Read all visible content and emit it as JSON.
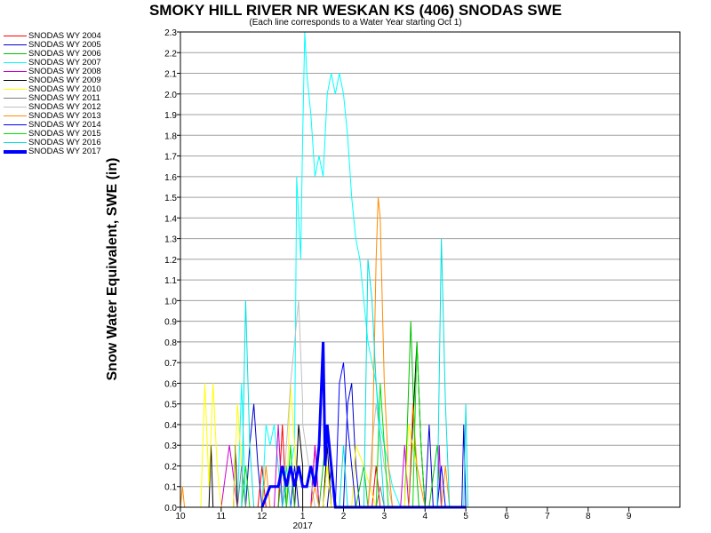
{
  "chart_data": {
    "type": "line",
    "title": "SMOKY HILL RIVER NR WESKAN KS (406) SNODAS SWE",
    "subtitle": "(Each line corresponds to a Water Year starting Oct 1)",
    "ylabel": "Snow Water Equivalent, SWE (in)",
    "xlabel": "",
    "year_label": "2017",
    "ylim": [
      0.0,
      2.3
    ],
    "yticks": [
      "0.0",
      "0.1",
      "0.2",
      "0.3",
      "0.4",
      "0.5",
      "0.6",
      "0.7",
      "0.8",
      "0.9",
      "1.0",
      "1.1",
      "1.2",
      "1.3",
      "1.4",
      "1.5",
      "1.6",
      "1.7",
      "1.8",
      "1.9",
      "2.0",
      "2.1",
      "2.2",
      "2.3"
    ],
    "xticks": [
      "10",
      "11",
      "12",
      "1",
      "2",
      "3",
      "4",
      "5",
      "6",
      "7",
      "8",
      "9"
    ],
    "grid": true,
    "legend_position": "left",
    "series": [
      {
        "name": "SNODAS WY 2004",
        "color": "#ff0000",
        "bold": false,
        "points": [
          [
            11.9,
            0
          ],
          [
            12.0,
            0.2
          ],
          [
            12.1,
            0
          ],
          [
            12.4,
            0
          ],
          [
            12.5,
            0.4
          ],
          [
            12.6,
            0
          ],
          [
            1.2,
            0
          ],
          [
            1.3,
            0.3
          ],
          [
            1.4,
            0
          ],
          [
            2.7,
            0
          ],
          [
            2.8,
            0.2
          ],
          [
            2.9,
            0
          ],
          [
            5.0,
            0
          ]
        ]
      },
      {
        "name": "SNODAS WY 2005",
        "color": "#0000cc",
        "bold": false,
        "points": [
          [
            11.6,
            0
          ],
          [
            11.7,
            0.3
          ],
          [
            11.8,
            0.5
          ],
          [
            11.9,
            0.2
          ],
          [
            12.0,
            0
          ],
          [
            1.6,
            0
          ],
          [
            1.7,
            0.2
          ],
          [
            1.8,
            0
          ],
          [
            2.0,
            0
          ],
          [
            2.1,
            0.5
          ],
          [
            2.2,
            0.6
          ],
          [
            2.3,
            0.2
          ],
          [
            2.4,
            0
          ],
          [
            4.0,
            0
          ],
          [
            4.1,
            0.4
          ],
          [
            4.2,
            0
          ],
          [
            4.9,
            0
          ],
          [
            4.95,
            0.4
          ],
          [
            5.0,
            0
          ]
        ]
      },
      {
        "name": "SNODAS WY 2006",
        "color": "#00c000",
        "bold": false,
        "points": [
          [
            12.4,
            0
          ],
          [
            12.5,
            0.2
          ],
          [
            12.6,
            0
          ],
          [
            1.4,
            0
          ],
          [
            1.6,
            0.4
          ],
          [
            1.8,
            0
          ],
          [
            2.3,
            0
          ],
          [
            2.5,
            0.2
          ],
          [
            2.6,
            0
          ],
          [
            3.5,
            0
          ],
          [
            3.65,
            0.9
          ],
          [
            3.75,
            0.3
          ],
          [
            3.85,
            0
          ],
          [
            4.1,
            0
          ],
          [
            4.3,
            0.3
          ],
          [
            4.4,
            0
          ],
          [
            5.0,
            0
          ]
        ]
      },
      {
        "name": "SNODAS WY 2007",
        "color": "#00ffff",
        "bold": false,
        "points": [
          [
            10.0,
            0
          ],
          [
            10.2,
            0
          ],
          [
            11.4,
            0
          ],
          [
            11.5,
            0.6
          ],
          [
            11.55,
            0.3
          ],
          [
            11.6,
            0
          ],
          [
            12.0,
            0
          ],
          [
            12.1,
            0.4
          ],
          [
            12.2,
            0.3
          ],
          [
            12.3,
            0.4
          ],
          [
            12.5,
            0
          ],
          [
            12.8,
            0.3
          ],
          [
            12.85,
            1.6
          ],
          [
            12.95,
            1.2
          ],
          [
            1.0,
            1.8
          ],
          [
            1.05,
            2.3
          ],
          [
            1.1,
            2.1
          ],
          [
            1.2,
            1.9
          ],
          [
            1.3,
            1.6
          ],
          [
            1.4,
            1.7
          ],
          [
            1.5,
            1.6
          ],
          [
            1.6,
            2.0
          ],
          [
            1.7,
            2.1
          ],
          [
            1.8,
            2.0
          ],
          [
            1.9,
            2.1
          ],
          [
            2.0,
            2.0
          ],
          [
            2.1,
            1.8
          ],
          [
            2.2,
            1.5
          ],
          [
            2.3,
            1.3
          ],
          [
            2.4,
            1.2
          ],
          [
            2.5,
            1.0
          ],
          [
            2.6,
            0.8
          ],
          [
            2.7,
            0.7
          ],
          [
            2.8,
            0.6
          ],
          [
            2.9,
            0.4
          ],
          [
            3.0,
            0.3
          ],
          [
            3.2,
            0.1
          ],
          [
            3.4,
            0
          ],
          [
            5.0,
            0
          ]
        ]
      },
      {
        "name": "SNODAS WY 2008",
        "color": "#cc00cc",
        "bold": false,
        "points": [
          [
            10.0,
            0
          ],
          [
            11.0,
            0
          ],
          [
            11.2,
            0.3
          ],
          [
            11.4,
            0
          ],
          [
            12.3,
            0
          ],
          [
            12.4,
            0.4
          ],
          [
            12.5,
            0
          ],
          [
            1.2,
            0
          ],
          [
            1.3,
            0.3
          ],
          [
            1.4,
            0
          ],
          [
            3.4,
            0
          ],
          [
            3.5,
            0.3
          ],
          [
            3.6,
            0
          ],
          [
            4.3,
            0
          ],
          [
            4.35,
            0.3
          ],
          [
            4.4,
            0
          ],
          [
            5.0,
            0
          ]
        ]
      },
      {
        "name": "SNODAS WY 2009",
        "color": "#000000",
        "bold": false,
        "points": [
          [
            10.7,
            0
          ],
          [
            10.75,
            0.3
          ],
          [
            10.8,
            0
          ],
          [
            11.3,
            0
          ],
          [
            11.35,
            0.3
          ],
          [
            11.4,
            0
          ],
          [
            12.8,
            0
          ],
          [
            12.9,
            0.4
          ],
          [
            13.0,
            0.2
          ],
          [
            1.0,
            0
          ],
          [
            1.5,
            0
          ],
          [
            1.6,
            0.3
          ],
          [
            1.7,
            0
          ],
          [
            3.6,
            0
          ],
          [
            3.8,
            0.8
          ],
          [
            3.9,
            0.3
          ],
          [
            4.0,
            0
          ],
          [
            5.0,
            0
          ]
        ]
      },
      {
        "name": "SNODAS WY 2010",
        "color": "#ffff00",
        "bold": false,
        "points": [
          [
            10.5,
            0
          ],
          [
            10.6,
            0.6
          ],
          [
            10.7,
            0.1
          ],
          [
            10.8,
            0.6
          ],
          [
            10.9,
            0.2
          ],
          [
            11.0,
            0
          ],
          [
            11.3,
            0
          ],
          [
            11.4,
            0.5
          ],
          [
            11.5,
            0.2
          ],
          [
            11.6,
            0
          ],
          [
            12.6,
            0
          ],
          [
            12.7,
            0.6
          ],
          [
            12.8,
            0.3
          ],
          [
            12.9,
            0
          ],
          [
            1.5,
            0
          ],
          [
            1.6,
            0.2
          ],
          [
            1.7,
            0
          ],
          [
            2.2,
            0
          ],
          [
            2.3,
            0.3
          ],
          [
            2.5,
            0.2
          ],
          [
            2.8,
            0
          ],
          [
            3.5,
            0
          ],
          [
            3.6,
            0.4
          ],
          [
            3.8,
            0.2
          ],
          [
            4.0,
            0
          ],
          [
            5.0,
            0
          ]
        ]
      },
      {
        "name": "SNODAS WY 2011",
        "color": "#808080",
        "bold": false,
        "points": [
          [
            11.4,
            0
          ],
          [
            11.5,
            0.2
          ],
          [
            11.6,
            0
          ],
          [
            12.6,
            0
          ],
          [
            12.7,
            0.2
          ],
          [
            12.8,
            0
          ],
          [
            2.8,
            0
          ],
          [
            2.9,
            0.1
          ],
          [
            3.0,
            0
          ],
          [
            5.0,
            0
          ]
        ]
      },
      {
        "name": "SNODAS WY 2012",
        "color": "#c0c0c0",
        "bold": false,
        "points": [
          [
            12.5,
            0
          ],
          [
            12.6,
            0.3
          ],
          [
            12.7,
            0.6
          ],
          [
            12.8,
            0.8
          ],
          [
            12.9,
            1.0
          ],
          [
            13.0,
            0.5
          ],
          [
            1.0,
            0.4
          ],
          [
            1.3,
            0
          ],
          [
            2.6,
            0
          ],
          [
            2.7,
            0.3
          ],
          [
            2.8,
            0.5
          ],
          [
            3.0,
            0.2
          ],
          [
            3.2,
            0
          ],
          [
            5.0,
            0
          ]
        ]
      },
      {
        "name": "SNODAS WY 2013",
        "color": "#ff8c00",
        "bold": false,
        "points": [
          [
            10.0,
            0
          ],
          [
            10.05,
            0.1
          ],
          [
            10.1,
            0
          ],
          [
            12.0,
            0
          ],
          [
            12.1,
            0.2
          ],
          [
            12.2,
            0
          ],
          [
            1.2,
            0
          ],
          [
            1.3,
            0.1
          ],
          [
            1.4,
            0
          ],
          [
            2.6,
            0
          ],
          [
            2.7,
            0.2
          ],
          [
            2.8,
            1.2
          ],
          [
            2.85,
            1.5
          ],
          [
            2.9,
            1.4
          ],
          [
            3.0,
            0.6
          ],
          [
            3.1,
            0.2
          ],
          [
            3.2,
            0
          ],
          [
            3.6,
            0
          ],
          [
            3.7,
            0.5
          ],
          [
            3.8,
            0.2
          ],
          [
            4.0,
            0
          ],
          [
            4.4,
            0
          ],
          [
            4.5,
            0.2
          ],
          [
            4.6,
            0
          ],
          [
            5.0,
            0
          ]
        ]
      },
      {
        "name": "SNODAS WY 2014",
        "color": "#0000ff",
        "bold": false,
        "points": [
          [
            12.7,
            0
          ],
          [
            12.8,
            0.2
          ],
          [
            12.9,
            0
          ],
          [
            1.8,
            0
          ],
          [
            1.9,
            0.6
          ],
          [
            2.0,
            0.7
          ],
          [
            2.1,
            0.4
          ],
          [
            2.2,
            0.2
          ],
          [
            2.3,
            0
          ],
          [
            4.3,
            0
          ],
          [
            4.4,
            0.2
          ],
          [
            4.5,
            0
          ],
          [
            5.0,
            0
          ]
        ]
      },
      {
        "name": "SNODAS WY 2015",
        "color": "#00e000",
        "bold": false,
        "points": [
          [
            11.5,
            0
          ],
          [
            11.6,
            0.2
          ],
          [
            11.7,
            0
          ],
          [
            12.6,
            0
          ],
          [
            12.7,
            0.3
          ],
          [
            12.8,
            0
          ],
          [
            2.8,
            0
          ],
          [
            2.9,
            0.6
          ],
          [
            3.0,
            0.3
          ],
          [
            3.1,
            0
          ],
          [
            3.7,
            0
          ],
          [
            3.8,
            0.8
          ],
          [
            3.9,
            0.3
          ],
          [
            4.0,
            0
          ],
          [
            5.0,
            0
          ]
        ]
      },
      {
        "name": "SNODAS WY 2016",
        "color": "#00e0e0",
        "bold": false,
        "points": [
          [
            11.5,
            0
          ],
          [
            11.6,
            1.0
          ],
          [
            11.7,
            0.3
          ],
          [
            11.8,
            0
          ],
          [
            12.5,
            0
          ],
          [
            12.6,
            0.2
          ],
          [
            12.7,
            0
          ],
          [
            1.9,
            0
          ],
          [
            2.0,
            0.3
          ],
          [
            2.1,
            0
          ],
          [
            2.5,
            0
          ],
          [
            2.6,
            1.2
          ],
          [
            2.7,
            1.0
          ],
          [
            2.8,
            0.6
          ],
          [
            2.9,
            0.3
          ],
          [
            3.0,
            0
          ],
          [
            4.3,
            0
          ],
          [
            4.4,
            1.3
          ],
          [
            4.5,
            0.5
          ],
          [
            4.6,
            0
          ],
          [
            4.95,
            0
          ],
          [
            5.0,
            0.5
          ],
          [
            5.05,
            0
          ]
        ]
      },
      {
        "name": "SNODAS WY 2017",
        "color": "#0000ff",
        "bold": true,
        "points": [
          [
            12.0,
            0
          ],
          [
            12.2,
            0.1
          ],
          [
            12.4,
            0.1
          ],
          [
            12.5,
            0.2
          ],
          [
            12.6,
            0.1
          ],
          [
            12.7,
            0.2
          ],
          [
            12.8,
            0.1
          ],
          [
            12.9,
            0.2
          ],
          [
            13.0,
            0.1
          ],
          [
            1.1,
            0.1
          ],
          [
            1.2,
            0.2
          ],
          [
            1.3,
            0.1
          ],
          [
            1.4,
            0.3
          ],
          [
            1.5,
            0.8
          ],
          [
            1.55,
            0.2
          ],
          [
            1.6,
            0.4
          ],
          [
            1.7,
            0.2
          ],
          [
            1.8,
            0
          ],
          [
            5.0,
            0
          ]
        ]
      }
    ]
  }
}
